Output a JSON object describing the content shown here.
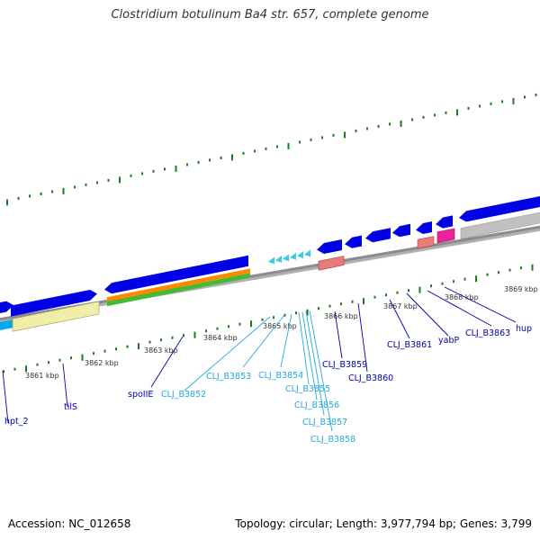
{
  "title": "Clostridium botulinum Ba4 str. 657, complete genome",
  "footer": {
    "accession": "Accession: NC_012658",
    "stats": "Topology: circular; Length: 3,977,794 bp; Genes: 3,799"
  },
  "colors": {
    "backbone": "#8c8c8c",
    "tick": "#1f7a1f",
    "cds_dark": "#0000e6",
    "cds_light": "#33ccee",
    "trna_pink": "#e87a7a",
    "magenta": "#ee2299",
    "gray_feature": "#c0c0c0",
    "yellow_feature": "#f2eeaa",
    "orange_feature": "#ff8800",
    "green_feature": "#44bb33",
    "label_dark": "#0000aa",
    "label_light": "#22aadd"
  },
  "kbp_labels": [
    "3861 kbp",
    "3862 kbp",
    "3863 kbp",
    "3864 kbp",
    "3865 kbp",
    "3866 kbp",
    "3867 kbp",
    "3868 kbp",
    "3869 kbp"
  ],
  "genes": [
    {
      "name": "hpt_2",
      "style": "dark"
    },
    {
      "name": "tilS",
      "style": "dark"
    },
    {
      "name": "spoIIE",
      "style": "dark"
    },
    {
      "name": "CLJ_B3852",
      "style": "light"
    },
    {
      "name": "CLJ_B3853",
      "style": "light"
    },
    {
      "name": "CLJ_B3854",
      "style": "light"
    },
    {
      "name": "CLJ_B3855",
      "style": "light"
    },
    {
      "name": "CLJ_B3856",
      "style": "light"
    },
    {
      "name": "CLJ_B3857",
      "style": "light"
    },
    {
      "name": "CLJ_B3858",
      "style": "light"
    },
    {
      "name": "CLJ_B3859",
      "style": "dark"
    },
    {
      "name": "CLJ_B3860",
      "style": "dark"
    },
    {
      "name": "CLJ_B3861",
      "style": "dark"
    },
    {
      "name": "yabP",
      "style": "dark"
    },
    {
      "name": "CLJ_B3863",
      "style": "dark"
    },
    {
      "name": "hup",
      "style": "dark"
    }
  ]
}
